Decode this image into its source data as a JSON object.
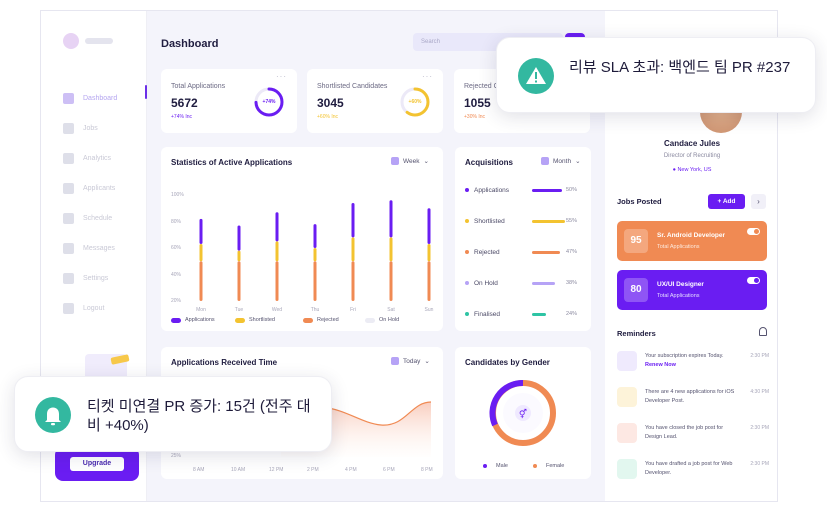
{
  "colors": {
    "accent": "#6a1df2",
    "orange": "#f08a53",
    "yellow": "#f3c330",
    "teal": "#2ec4a4",
    "toast_icon": "#33b8a0"
  },
  "header": {
    "title": "Dashboard",
    "search_placeholder": "Search"
  },
  "sidebar": {
    "items": [
      {
        "label": "Dashboard",
        "icon": "grid-icon",
        "active": true
      },
      {
        "label": "Jobs",
        "icon": "briefcase-icon"
      },
      {
        "label": "Analytics",
        "icon": "chart-icon"
      },
      {
        "label": "Applicants",
        "icon": "users-icon"
      },
      {
        "label": "Schedule",
        "icon": "calendar-icon"
      },
      {
        "label": "Messages",
        "icon": "message-icon"
      },
      {
        "label": "Settings",
        "icon": "gear-icon"
      },
      {
        "label": "Logout",
        "icon": "logout-icon"
      }
    ],
    "upgrade_label": "Upgrade"
  },
  "stats": [
    {
      "title": "Total Applications",
      "value": "5672",
      "sub": "+74% Inc",
      "ring_label": "+74%",
      "ring_pct": 0.74,
      "color": "#6a1df2"
    },
    {
      "title": "Shortlisted Candidates",
      "value": "3045",
      "sub": "+60% Inc",
      "ring_label": "+60%",
      "ring_pct": 0.6,
      "color": "#f3c330"
    },
    {
      "title": "Rejected C",
      "value": "1055",
      "sub": "+30% Inc",
      "ring_label": "",
      "ring_pct": 0.3,
      "color": "#f08a53"
    }
  ],
  "activity": {
    "title": "Statistics of Active Applications",
    "filter": "Week",
    "legend": [
      "Applications",
      "Shortlisted",
      "Rejected",
      "On Hold"
    ]
  },
  "chart_data": [
    {
      "type": "bar",
      "title": "Statistics of Active Applications",
      "categories": [
        "Mon",
        "Tue",
        "Wed",
        "Thu",
        "Fri",
        "Sat",
        "Sun"
      ],
      "y_ticks": [
        "100%",
        "80%",
        "60%",
        "40%",
        "20%"
      ],
      "ylim": [
        20,
        100
      ],
      "series": [
        {
          "name": "Rejected",
          "values": [
            50,
            50,
            50,
            50,
            50,
            50,
            50
          ]
        },
        {
          "name": "Shortlisted",
          "values": [
            63,
            58,
            65,
            60,
            68,
            68,
            63
          ]
        },
        {
          "name": "Applications",
          "values": [
            82,
            77,
            87,
            78,
            94,
            96,
            90
          ]
        }
      ]
    },
    {
      "type": "line",
      "title": "Applications Received Time",
      "x": [
        "8 AM",
        "10 AM",
        "12 PM",
        "2 PM",
        "4 PM",
        "6 PM",
        "8 PM"
      ],
      "y_ticks": [
        "25%"
      ]
    },
    {
      "type": "pie",
      "title": "Candidates by Gender",
      "categories": [
        "Male",
        "Female"
      ]
    }
  ],
  "acquisitions": {
    "title": "Acquisitions",
    "filter": "Month",
    "rows": [
      {
        "name": "Applications",
        "value": "50%",
        "pct": 0.5,
        "color": "#6a1df2"
      },
      {
        "name": "Shortlisted",
        "value": "55%",
        "pct": 0.55,
        "color": "#f3c330"
      },
      {
        "name": "Rejected",
        "value": "47%",
        "pct": 0.47,
        "color": "#f08a53"
      },
      {
        "name": "On Hold",
        "value": "38%",
        "pct": 0.38,
        "color": "#b6a3f6"
      },
      {
        "name": "Finalised",
        "value": "24%",
        "pct": 0.24,
        "color": "#2ec4a4"
      }
    ]
  },
  "received": {
    "title": "Applications Received Time",
    "filter": "Today"
  },
  "gender": {
    "title": "Candidates by Gender",
    "legend": [
      "Male",
      "Female"
    ]
  },
  "profile": {
    "name": "Candace Jules",
    "role": "Director of Recruiting",
    "location": "New York, US"
  },
  "jobs": {
    "title": "Jobs Posted",
    "add_label": "+ Add",
    "items": [
      {
        "count": "95",
        "title": "Sr. Android Developer",
        "sub": "Total Applications",
        "color": "#f08a53"
      },
      {
        "count": "80",
        "title": "UX/UI Designer",
        "sub": "Total Applications",
        "color": "#6a1df2"
      }
    ]
  },
  "reminders": {
    "title": "Reminders",
    "items": [
      {
        "text": "Your subscription expires Today.",
        "link": "Renew Now",
        "time": "2:30 PM",
        "icon": "refresh-icon",
        "bg": "#efeafd"
      },
      {
        "text": "There are 4 new applications for iOS Developer Post.",
        "link": "",
        "time": "4:30 PM",
        "icon": "document-icon",
        "bg": "#fdf3d9"
      },
      {
        "text": "You have closed the job post for Design Lead.",
        "link": "",
        "time": "2:30 PM",
        "icon": "clock-icon",
        "bg": "#fde8e3"
      },
      {
        "text": "You have drafted a job post for Web Developer.",
        "link": "",
        "time": "2:30 PM",
        "icon": "folder-icon",
        "bg": "#e2f7ef"
      }
    ]
  },
  "notifications": [
    {
      "text": "리뷰 SLA 초과: 백엔드 팀 PR #237",
      "icon": "warning-icon"
    },
    {
      "text": "티켓 미연결 PR 증가: 15건 (전주 대비 +40%)",
      "icon": "bell-icon"
    }
  ]
}
